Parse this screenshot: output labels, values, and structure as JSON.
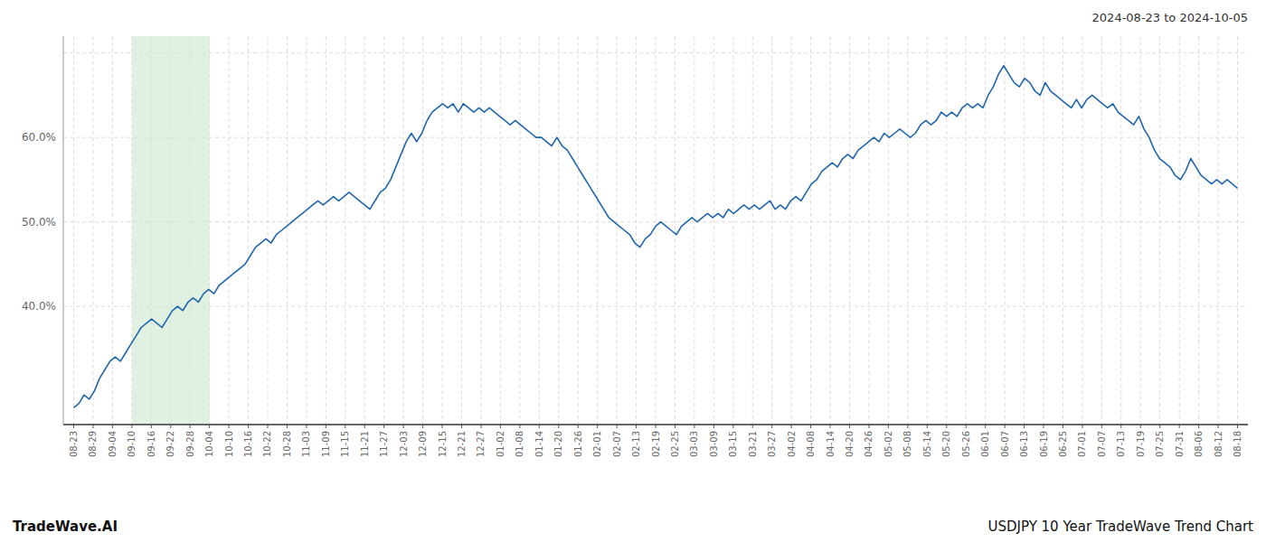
{
  "chart_data": {
    "type": "line",
    "title": "USDJPY 10 Year TradeWave Trend Chart",
    "subtitle": "2024-08-23 to 2024-10-05",
    "annotations": [
      "TradeWave.AI"
    ],
    "color": "#2166ac",
    "grid": true,
    "highlight": {
      "from": 11.2,
      "to": 26.1333333333,
      "color": "#cde8cd"
    },
    "xlim": [
      -2,
      226
    ],
    "xticks": [
      {
        "value": 0,
        "label": "08-23"
      },
      {
        "value": 3.7333333333,
        "label": "08-29"
      },
      {
        "value": 7.4666666667,
        "label": "09-04"
      },
      {
        "value": 11.2,
        "label": "09-10"
      },
      {
        "value": 14.9333333333,
        "label": "09-16"
      },
      {
        "value": 18.6666666667,
        "label": "09-22"
      },
      {
        "value": 22.4,
        "label": "09-28"
      },
      {
        "value": 26.1333333333,
        "label": "10-04"
      },
      {
        "value": 29.8666666667,
        "label": "10-10"
      },
      {
        "value": 33.6,
        "label": "10-16"
      },
      {
        "value": 37.3333333333,
        "label": "10-22"
      },
      {
        "value": 41.0666666667,
        "label": "10-28"
      },
      {
        "value": 44.8,
        "label": "11-03"
      },
      {
        "value": 48.5333333333,
        "label": "11-09"
      },
      {
        "value": 52.2666666667,
        "label": "11-15"
      },
      {
        "value": 56,
        "label": "11-21"
      },
      {
        "value": 59.7333333333,
        "label": "11-27"
      },
      {
        "value": 63.4666666667,
        "label": "12-03"
      },
      {
        "value": 67.2,
        "label": "12-09"
      },
      {
        "value": 70.9333333333,
        "label": "12-15"
      },
      {
        "value": 74.6666666667,
        "label": "12-21"
      },
      {
        "value": 78.4,
        "label": "12-27"
      },
      {
        "value": 82.1333333333,
        "label": "01-02"
      },
      {
        "value": 85.8666666667,
        "label": "01-08"
      },
      {
        "value": 89.6,
        "label": "01-14"
      },
      {
        "value": 93.3333333333,
        "label": "01-20"
      },
      {
        "value": 97.0666666667,
        "label": "01-26"
      },
      {
        "value": 100.8,
        "label": "02-01"
      },
      {
        "value": 104.5333333333,
        "label": "02-07"
      },
      {
        "value": 108.2666666667,
        "label": "02-13"
      },
      {
        "value": 112,
        "label": "02-19"
      },
      {
        "value": 115.7333333333,
        "label": "02-25"
      },
      {
        "value": 119.4666666667,
        "label": "03-03"
      },
      {
        "value": 123.2,
        "label": "03-09"
      },
      {
        "value": 126.9333333333,
        "label": "03-15"
      },
      {
        "value": 130.6666666667,
        "label": "03-21"
      },
      {
        "value": 134.4,
        "label": "03-27"
      },
      {
        "value": 138.1333333333,
        "label": "04-02"
      },
      {
        "value": 141.8666666667,
        "label": "04-08"
      },
      {
        "value": 145.6,
        "label": "04-14"
      },
      {
        "value": 149.3333333333,
        "label": "04-20"
      },
      {
        "value": 153.0666666667,
        "label": "04-26"
      },
      {
        "value": 156.8,
        "label": "05-02"
      },
      {
        "value": 160.5333333333,
        "label": "05-08"
      },
      {
        "value": 164.2666666667,
        "label": "05-14"
      },
      {
        "value": 168,
        "label": "05-20"
      },
      {
        "value": 171.7333333333,
        "label": "05-26"
      },
      {
        "value": 175.4666666667,
        "label": "06-01"
      },
      {
        "value": 179.2,
        "label": "06-07"
      },
      {
        "value": 182.9333333333,
        "label": "06-13"
      },
      {
        "value": 186.6666666667,
        "label": "06-19"
      },
      {
        "value": 190.4,
        "label": "06-25"
      },
      {
        "value": 194.1333333333,
        "label": "07-01"
      },
      {
        "value": 197.8666666667,
        "label": "07-07"
      },
      {
        "value": 201.6,
        "label": "07-13"
      },
      {
        "value": 205.3333333333,
        "label": "07-19"
      },
      {
        "value": 209.0666666667,
        "label": "07-25"
      },
      {
        "value": 212.8,
        "label": "07-31"
      },
      {
        "value": 216.5333333333,
        "label": "08-06"
      },
      {
        "value": 220.2666666667,
        "label": "08-12"
      },
      {
        "value": 224,
        "label": "08-18"
      }
    ],
    "ylim": [
      26,
      72
    ],
    "yticks": [
      {
        "value": 40,
        "label": "40.0%"
      },
      {
        "value": 50,
        "label": "50.0%"
      },
      {
        "value": 60,
        "label": "60.0%"
      },
      {
        "value": 70,
        "label": null
      }
    ],
    "values": [
      28.0,
      28.5,
      29.5,
      29.0,
      30.0,
      31.5,
      32.5,
      33.5,
      34.0,
      33.5,
      34.5,
      35.5,
      36.5,
      37.5,
      38.0,
      38.5,
      38.0,
      37.5,
      38.5,
      39.5,
      40.0,
      39.5,
      40.5,
      41.0,
      40.5,
      41.5,
      42.0,
      41.5,
      42.5,
      43.0,
      43.5,
      44.0,
      44.5,
      45.0,
      46.0,
      47.0,
      47.5,
      48.0,
      47.5,
      48.5,
      49.0,
      49.5,
      50.0,
      50.5,
      51.0,
      51.5,
      52.0,
      52.5,
      52.0,
      52.5,
      53.0,
      52.5,
      53.0,
      53.5,
      53.0,
      52.5,
      52.0,
      51.5,
      52.5,
      53.5,
      54.0,
      55.0,
      56.5,
      58.0,
      59.5,
      60.5,
      59.5,
      60.5,
      62.0,
      63.0,
      63.5,
      64.0,
      63.5,
      64.0,
      63.0,
      64.0,
      63.5,
      63.0,
      63.5,
      63.0,
      63.5,
      63.0,
      62.5,
      62.0,
      61.5,
      62.0,
      61.5,
      61.0,
      60.5,
      60.0,
      60.0,
      59.5,
      59.0,
      60.0,
      59.0,
      58.5,
      57.5,
      56.5,
      55.5,
      54.5,
      53.5,
      52.5,
      51.5,
      50.5,
      50.0,
      49.5,
      49.0,
      48.5,
      47.5,
      47.0,
      48.0,
      48.5,
      49.5,
      50.0,
      49.5,
      49.0,
      48.5,
      49.5,
      50.0,
      50.5,
      50.0,
      50.5,
      51.0,
      50.5,
      51.0,
      50.5,
      51.5,
      51.0,
      51.5,
      52.0,
      51.5,
      52.0,
      51.5,
      52.0,
      52.5,
      51.5,
      52.0,
      51.5,
      52.5,
      53.0,
      52.5,
      53.5,
      54.5,
      55.0,
      56.0,
      56.5,
      57.0,
      56.5,
      57.5,
      58.0,
      57.5,
      58.5,
      59.0,
      59.5,
      60.0,
      59.5,
      60.5,
      60.0,
      60.5,
      61.0,
      60.5,
      60.0,
      60.5,
      61.5,
      62.0,
      61.5,
      62.0,
      63.0,
      62.5,
      63.0,
      62.5,
      63.5,
      64.0,
      63.5,
      64.0,
      63.5,
      65.0,
      66.0,
      67.5,
      68.5,
      67.5,
      66.5,
      66.0,
      67.0,
      66.5,
      65.5,
      65.0,
      66.5,
      65.5,
      65.0,
      64.5,
      64.0,
      63.5,
      64.5,
      63.5,
      64.5,
      65.0,
      64.5,
      64.0,
      63.5,
      64.0,
      63.0,
      62.5,
      62.0,
      61.5,
      62.5,
      61.0,
      60.0,
      58.5,
      57.5,
      57.0,
      56.5,
      55.5,
      55.0,
      56.0,
      57.5,
      56.5,
      55.5,
      55.0,
      54.5,
      55.0,
      54.5,
      55.0,
      54.5,
      54.0
    ]
  }
}
